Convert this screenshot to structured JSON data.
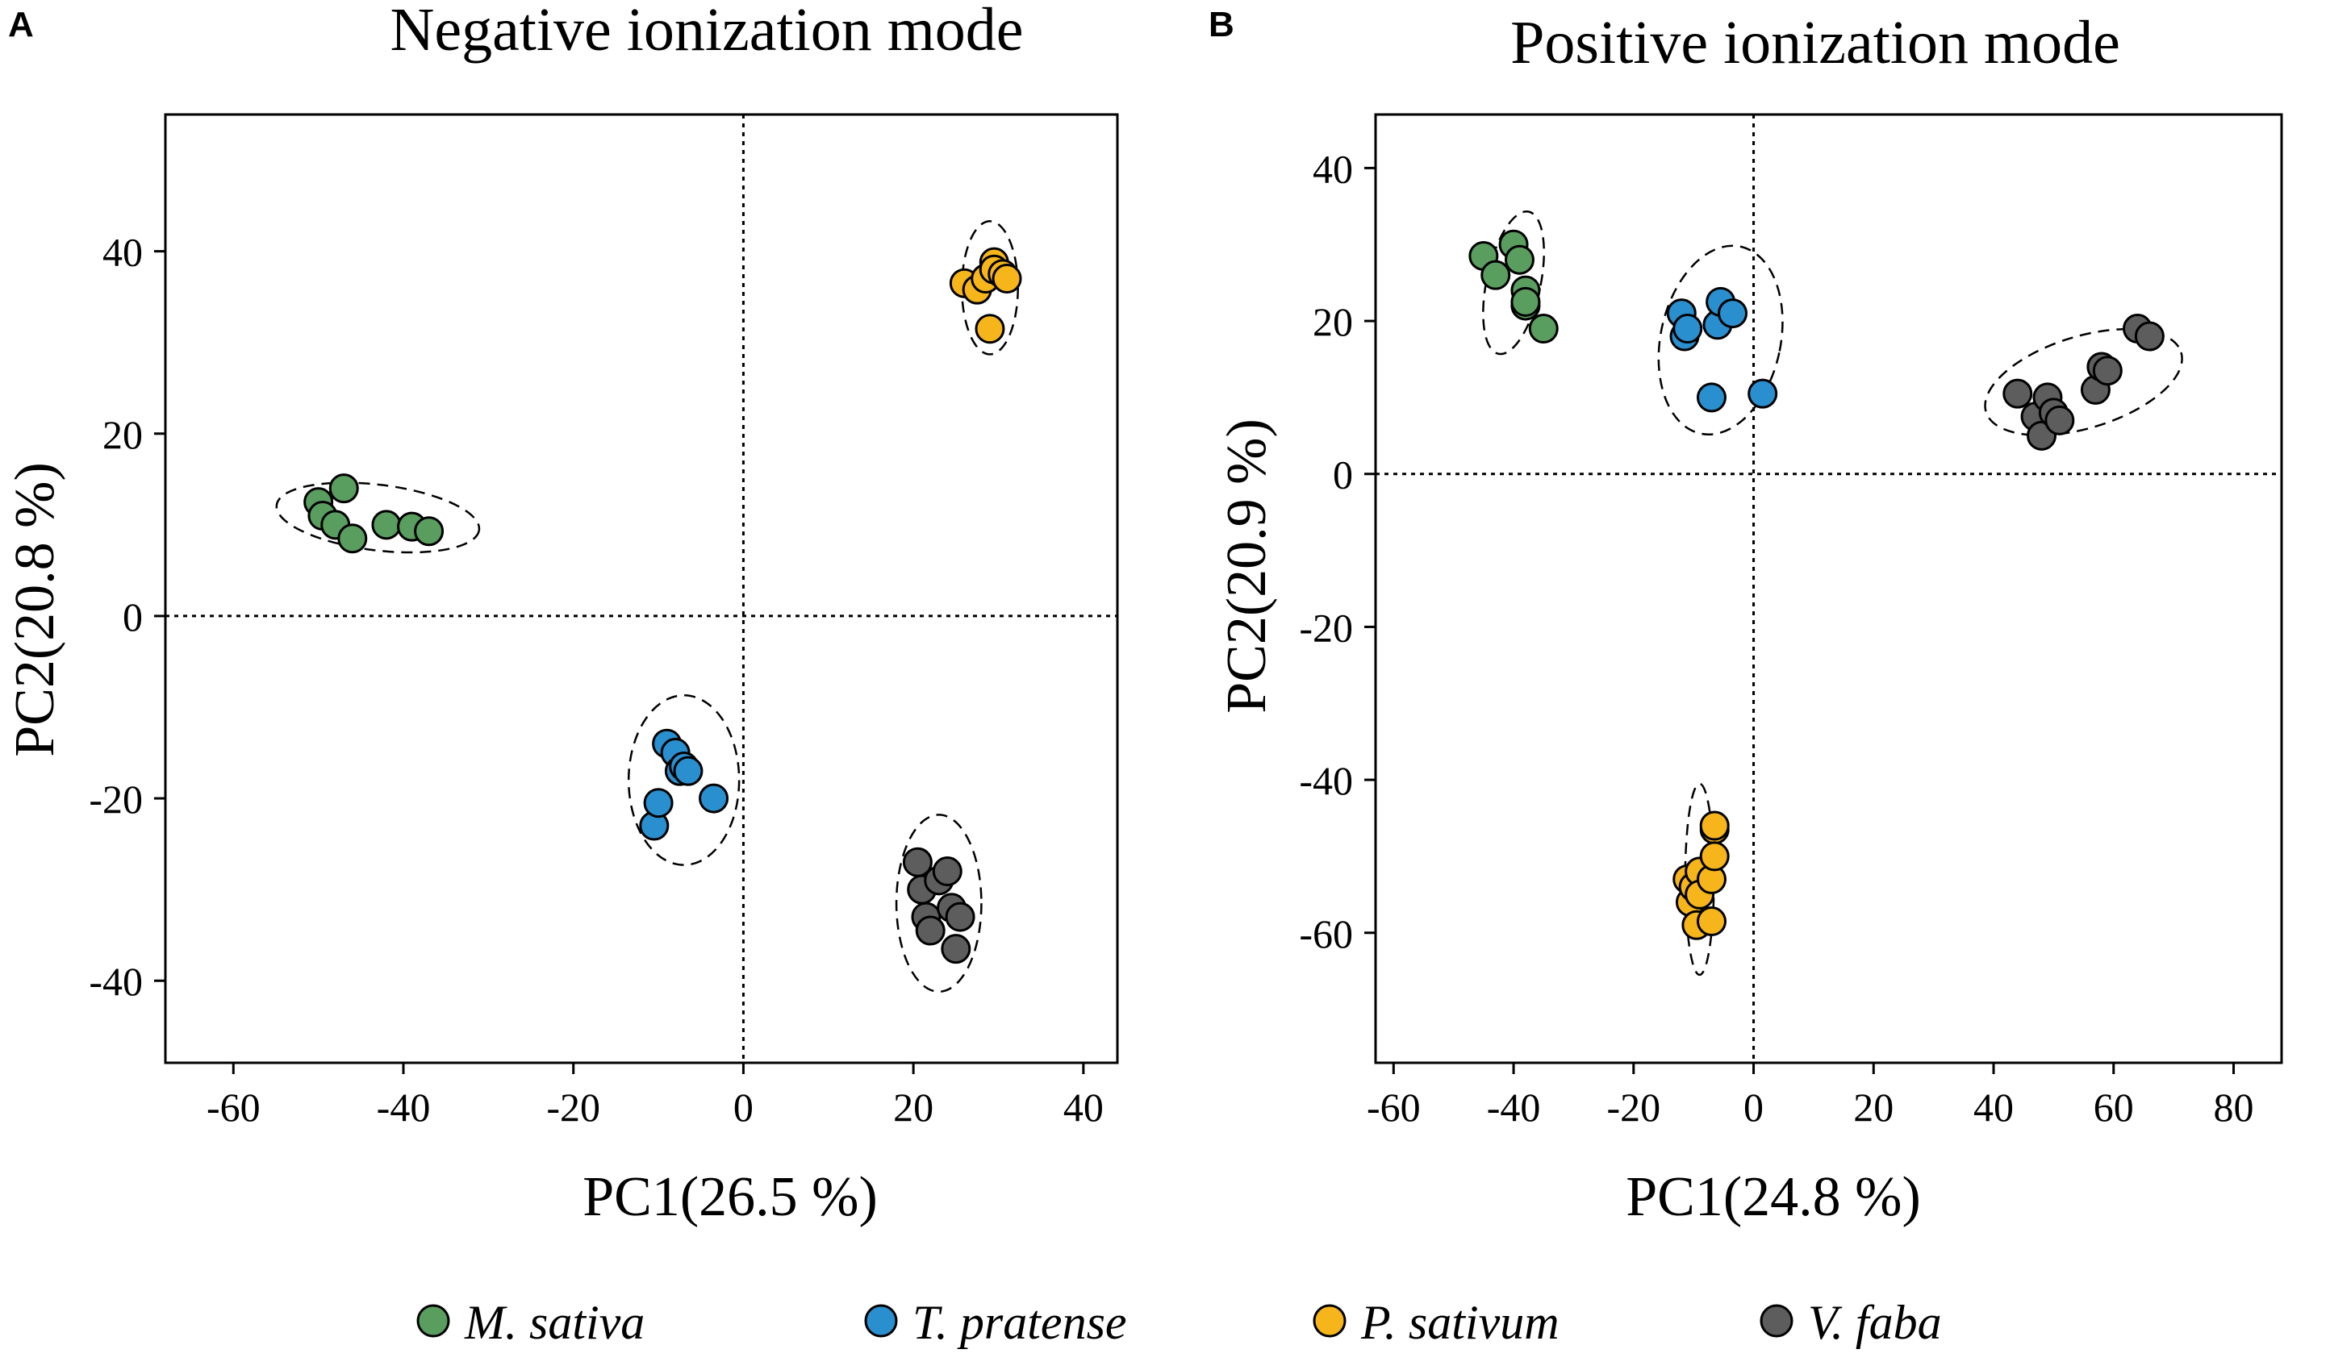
{
  "colors": {
    "M. sativa": "#5a9e5f",
    "T. pratense": "#2a8fcf",
    "P. sativum": "#f7b51c",
    "V. faba": "#5d5d5d"
  },
  "legend": [
    {
      "label": "M. sativa",
      "icon": "circle-marker"
    },
    {
      "label": "T. pratense",
      "icon": "circle-marker"
    },
    {
      "label": "P. sativum",
      "icon": "circle-marker"
    },
    {
      "label": "V. faba",
      "icon": "circle-marker"
    }
  ],
  "chart_data": [
    {
      "type": "scatter",
      "panel_label": "A",
      "title": "Negative ionization mode",
      "xlabel": "PC1(26.5 %)",
      "ylabel": "PC2(20.8 %)",
      "xlim": [
        -68,
        44
      ],
      "ylim": [
        -49,
        55
      ],
      "xticks": [
        -60,
        -40,
        -20,
        0,
        20,
        40
      ],
      "yticks": [
        -40,
        -20,
        0,
        20,
        40
      ],
      "reference_lines": {
        "x": 0,
        "y": 0
      },
      "series": [
        {
          "name": "M. sativa",
          "x": [
            -50,
            -49.5,
            -48,
            -47,
            -46,
            -42,
            -39,
            -37
          ],
          "y": [
            12.5,
            11,
            10,
            14,
            8.5,
            10,
            9.8,
            9.3
          ],
          "ellipse": {
            "cx": -43,
            "cy": 10.8,
            "rx": 12,
            "ry": 3.6,
            "angle_deg": -7
          }
        },
        {
          "name": "T. pratense",
          "x": [
            -10.5,
            -10,
            -9,
            -8,
            -7.5,
            -7,
            -6.5,
            -3.5
          ],
          "y": [
            -23,
            -20.5,
            -14,
            -15,
            -17,
            -16.5,
            -17,
            -20
          ],
          "ellipse": {
            "cx": -7,
            "cy": -18,
            "rx": 6.5,
            "ry": 9.3,
            "angle_deg": 0
          }
        },
        {
          "name": "P. sativum",
          "x": [
            26,
            27.5,
            28.5,
            29,
            29.5,
            29.5,
            30.5,
            31
          ],
          "y": [
            36.5,
            35.8,
            37,
            31.5,
            38.8,
            38,
            37.5,
            37
          ],
          "ellipse": {
            "cx": 29,
            "cy": 36,
            "rx": 3.3,
            "ry": 7.3,
            "angle_deg": 0
          }
        },
        {
          "name": "V. faba",
          "x": [
            20.5,
            21,
            21.5,
            22,
            23,
            24,
            24.5,
            25,
            25.5
          ],
          "y": [
            -27,
            -30,
            -33,
            -34.5,
            -29,
            -28,
            -32,
            -36.5,
            -33
          ],
          "ellipse": {
            "cx": 23,
            "cy": -31.5,
            "rx": 5,
            "ry": 9.7,
            "angle_deg": 0
          }
        }
      ]
    },
    {
      "type": "scatter",
      "panel_label": "B",
      "title": "Positive ionization mode",
      "xlabel": "PC1(24.8 %)",
      "ylabel": "PC2(20.9 %)",
      "xlim": [
        -63,
        88
      ],
      "ylim": [
        -77,
        47
      ],
      "xticks": [
        -60,
        -40,
        -20,
        0,
        20,
        40,
        60,
        80
      ],
      "yticks": [
        -60,
        -40,
        -20,
        0,
        20,
        40
      ],
      "reference_lines": {
        "x": 0,
        "y": 0
      },
      "series": [
        {
          "name": "M. sativa",
          "x": [
            -45,
            -43,
            -40,
            -39,
            -38,
            -38,
            -38,
            -35
          ],
          "y": [
            28.5,
            26,
            30,
            28,
            24,
            22,
            22.5,
            19
          ],
          "ellipse": {
            "cx": -40,
            "cy": 25,
            "rx": 4.5,
            "ry": 9.5,
            "angle_deg": -12
          }
        },
        {
          "name": "T. pratense",
          "x": [
            -12,
            -11.5,
            -11,
            -7,
            -6,
            -5.5,
            -3.5,
            1.5
          ],
          "y": [
            21,
            18,
            19,
            10,
            19.5,
            22.5,
            21,
            10.5
          ],
          "ellipse": {
            "cx": -5.5,
            "cy": 17.5,
            "rx": 10,
            "ry": 12.5,
            "angle_deg": -12
          }
        },
        {
          "name": "P. sativum",
          "x": [
            -11,
            -10.5,
            -10,
            -9.5,
            -9,
            -9,
            -7,
            -7,
            -6.5,
            -6.5,
            -6.5
          ],
          "y": [
            -53,
            -56,
            -54,
            -59,
            -52,
            -55,
            -53,
            -58.5,
            -46.5,
            -50,
            -46
          ],
          "ellipse": {
            "cx": -9,
            "cy": -53,
            "rx": 2.4,
            "ry": 12.5,
            "angle_deg": 0
          }
        },
        {
          "name": "V. faba",
          "x": [
            44,
            47,
            48,
            49,
            50,
            51,
            57,
            58,
            59,
            64,
            66
          ],
          "y": [
            10.5,
            7.5,
            5,
            10,
            8,
            7,
            11,
            14,
            13.5,
            19,
            18
          ],
          "ellipse": {
            "cx": 55,
            "cy": 12,
            "rx": 17,
            "ry": 6,
            "angle_deg": 17
          }
        }
      ]
    }
  ]
}
